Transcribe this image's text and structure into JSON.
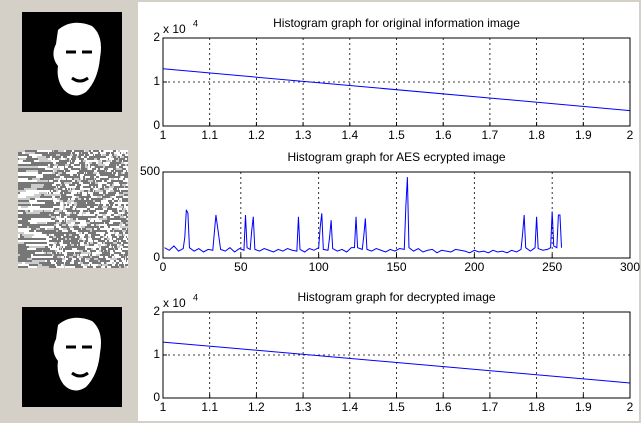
{
  "chart_data": [
    {
      "type": "line",
      "title": "Histogram graph for original information image",
      "y_exponent_base": "x 10",
      "y_exponent": "4",
      "x": [
        1,
        2
      ],
      "values": [
        1.3,
        0.35
      ],
      "color": "#0000ff",
      "xlim": [
        1,
        2
      ],
      "xticks": [
        1,
        1.1,
        1.2,
        1.3,
        1.4,
        1.5,
        1.6,
        1.7,
        1.8,
        1.9,
        2
      ],
      "ylim": [
        0,
        2
      ],
      "yticks": [
        0,
        1,
        2
      ],
      "grid": true
    },
    {
      "type": "line",
      "title": "Histogram graph for AES ecrypted image",
      "x": [
        1,
        4,
        7,
        10,
        13,
        14,
        15,
        16,
        17,
        20,
        23,
        26,
        29,
        32,
        33,
        34,
        37,
        40,
        43,
        46,
        49,
        52,
        53,
        54,
        56,
        57,
        58,
        59,
        62,
        65,
        68,
        71,
        74,
        77,
        80,
        83,
        86,
        87,
        88,
        91,
        94,
        97,
        100,
        101,
        102,
        103,
        106,
        107,
        108,
        109,
        112,
        115,
        118,
        121,
        123,
        124,
        125,
        128,
        129,
        130,
        131,
        134,
        137,
        140,
        143,
        146,
        149,
        152,
        155,
        156,
        157,
        158,
        161,
        164,
        167,
        170,
        173,
        176,
        179,
        182,
        185,
        188,
        191,
        194,
        197,
        200,
        203,
        206,
        209,
        212,
        215,
        218,
        221,
        224,
        227,
        230,
        231,
        232,
        233,
        236,
        239,
        240,
        241,
        244,
        247,
        249,
        250,
        251,
        253,
        254,
        255,
        256
      ],
      "values": [
        60,
        45,
        70,
        40,
        55,
        120,
        280,
        260,
        60,
        40,
        55,
        35,
        50,
        45,
        150,
        250,
        50,
        40,
        60,
        35,
        55,
        45,
        250,
        60,
        50,
        160,
        240,
        50,
        40,
        55,
        45,
        35,
        50,
        40,
        55,
        45,
        40,
        240,
        50,
        35,
        55,
        45,
        60,
        180,
        260,
        50,
        45,
        120,
        220,
        55,
        40,
        50,
        35,
        60,
        60,
        240,
        60,
        50,
        130,
        230,
        50,
        40,
        55,
        45,
        35,
        50,
        40,
        55,
        50,
        300,
        470,
        60,
        40,
        55,
        35,
        45,
        50,
        30,
        45,
        40,
        35,
        50,
        45,
        40,
        30,
        45,
        35,
        40,
        30,
        45,
        35,
        40,
        30,
        45,
        35,
        50,
        140,
        250,
        60,
        40,
        60,
        240,
        55,
        45,
        50,
        60,
        270,
        70,
        60,
        250,
        250,
        60
      ],
      "color": "#0000ff",
      "xlim": [
        0,
        300
      ],
      "xticks": [
        0,
        50,
        100,
        150,
        200,
        250,
        300
      ],
      "ylim": [
        0,
        500
      ],
      "yticks": [
        0,
        500
      ],
      "grid": true
    },
    {
      "type": "line",
      "title": "Histogram graph for decrypted image",
      "y_exponent_base": "x 10",
      "y_exponent": "4",
      "x": [
        1,
        2
      ],
      "values": [
        1.3,
        0.35
      ],
      "color": "#0000ff",
      "xlim": [
        1,
        2
      ],
      "xticks": [
        1,
        1.1,
        1.2,
        1.3,
        1.4,
        1.5,
        1.6,
        1.7,
        1.8,
        1.9,
        2
      ],
      "ylim": [
        0,
        2
      ],
      "yticks": [
        0,
        1,
        2
      ],
      "grid": true
    }
  ]
}
